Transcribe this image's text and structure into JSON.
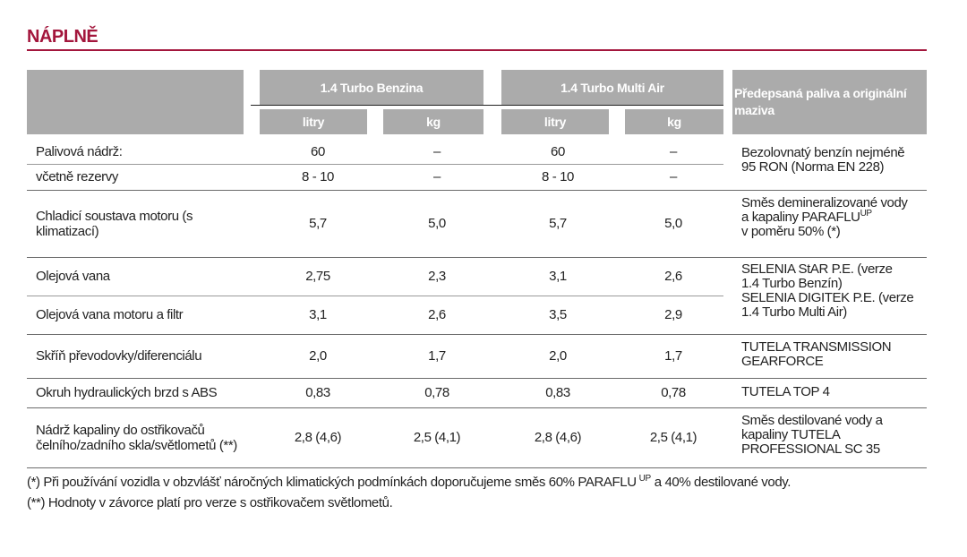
{
  "header": {
    "title": "NÁPLNĚ"
  },
  "table": {
    "groups": [
      "1.4 Turbo Benzina",
      "1.4 Turbo Multi Air"
    ],
    "units": [
      "litry",
      "kg",
      "litry",
      "kg"
    ],
    "spec_header": "Předepsaná paliva a originální maziva",
    "rows": [
      [
        "Palivová nádrž:",
        "60",
        "–",
        "60",
        "–"
      ],
      [
        "včetně rezervy",
        "8 - 10",
        "–",
        "8 - 10",
        "–"
      ],
      [
        "Chladicí soustava motoru (s klimatizací)",
        "5,7",
        "5,0",
        "5,7",
        "5,0"
      ],
      [
        "Olejová vana",
        "2,75",
        "2,3",
        "3,1",
        "2,6"
      ],
      [
        "Olejová vana motoru a filtr",
        "3,1",
        "2,6",
        "3,5",
        "2,9"
      ],
      [
        "Skříň převodovky/diferenciálu",
        "2,0",
        "1,7",
        "2,0",
        "1,7"
      ],
      [
        "Okruh hydraulických brzd s ABS",
        "0,83",
        "0,78",
        "0,83",
        "0,78"
      ],
      [
        "Nádrž kapaliny do ostřikovačů čelního/zadního skla/světlometů (**)",
        "2,8 (4,6)",
        "2,5 (4,1)",
        "2,8 (4,6)",
        "2,5 (4,1)"
      ]
    ],
    "specs": [
      {
        "lines": [
          "Bezolovnatý benzín nejméně",
          "95 RON (Norma EN 228)"
        ]
      },
      {
        "lines": [
          "Směs demineralizované vody",
          "a kapaliny PARAFLU",
          "v poměru 50% (*)"
        ],
        "sup": "UP"
      },
      {
        "lines": [
          "SELENIA StAR P.E. (verze",
          "1.4 Turbo Benzín)",
          "SELENIA DIGITEK P.E. (verze",
          "1.4 Turbo Multi Air)"
        ]
      },
      {
        "lines": [
          "TUTELA TRANSMISSION",
          "GEARFORCE"
        ]
      },
      {
        "lines": [
          "TUTELA TOP 4"
        ]
      },
      {
        "lines": [
          "Směs destilované vody a",
          "kapaliny TUTELA",
          "PROFESSIONAL SC 35"
        ]
      }
    ]
  },
  "footnotes": [
    {
      "text": "(*) Při používání vozidla v obzvlášť náročných klimatických podmínkách doporučujeme směs 60% PARAFLU",
      "sup": "UP",
      "tail": "a 40% destilované vody."
    },
    {
      "text": "(**) Hodnoty v závorce platí pro verze s ostřikovačem světlometů."
    }
  ]
}
